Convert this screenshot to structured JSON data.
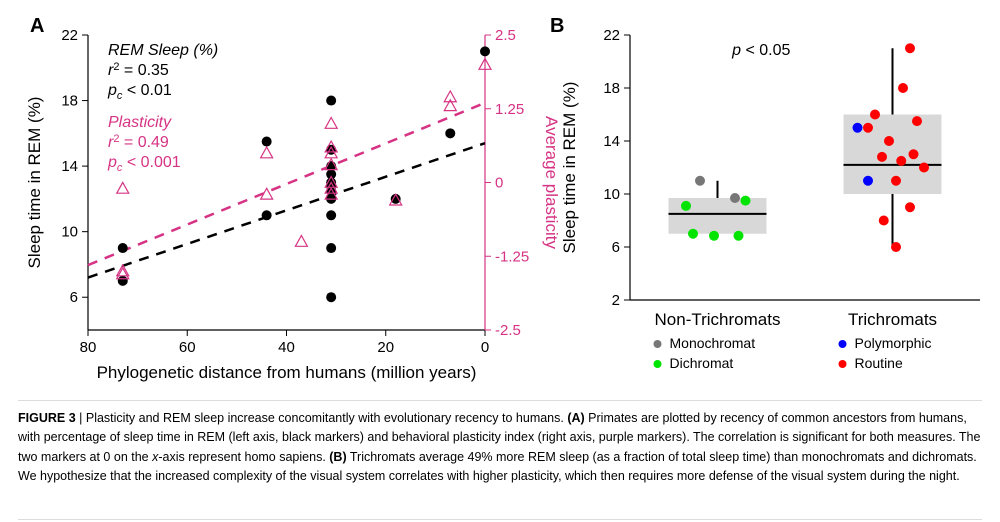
{
  "figure_number": "FIGURE 3",
  "caption_separator": " | ",
  "caption_intro": "Plasticity and REM sleep increase concomitantly with evolutionary recency to humans. ",
  "caption_A_label": "(A)",
  "caption_A": " Primates are plotted by recency of common ancestors from humans, with percentage of sleep time in REM (left axis, black markers) and behavioral plasticity index (right axis, purple markers). The correlation is significant for both measures. The two markers at 0 on the ",
  "caption_x_axis": "x",
  "caption_A2": "-axis represent homo sapiens. ",
  "caption_B_label": "(B)",
  "caption_B": " Trichromats average 49% more REM sleep (as a fraction of total sleep time) than monochromats and dichromats. We hypothesize that the increased complexity of the visual system correlates with higher plasticity, which then requires more defense of the visual system during the night.",
  "panelA": {
    "letter": "A",
    "x_title": "Phylogenetic distance from humans (million years)",
    "y_title": "Sleep time in REM (%)",
    "y2_title": "Average plasticity",
    "stats_rem_title": "REM Sleep (%)",
    "stats_rem_r2_label": "r",
    "stats_rem_r2_sup": "2",
    "stats_rem_r2_val": " = 0.35",
    "stats_rem_p_label": "p",
    "stats_rem_p_sub": "c",
    "stats_rem_p_val": " < 0.01",
    "stats_plast_title": "Plasticity",
    "stats_plast_r2_label": "r",
    "stats_plast_r2_sup": "2",
    "stats_plast_r2_val": " = 0.49",
    "stats_plast_p_label": "p",
    "stats_plast_p_sub": "c",
    "stats_plast_p_val": " < 0.001",
    "x_domain": [
      80,
      0
    ],
    "y_domain": [
      4,
      22
    ],
    "y2_domain": [
      -2.5,
      2.5
    ],
    "x_ticks": [
      80,
      60,
      40,
      20,
      0
    ],
    "y_ticks": [
      6,
      10,
      14,
      18,
      22
    ],
    "y2_ticks": [
      -2.5,
      -1.25,
      0,
      1.25,
      2.5
    ],
    "rem_marker_radius": 5,
    "rem_color": "#000000",
    "plast_color": "#d63384",
    "rem_line": {
      "x1": 80,
      "y1": 7.2,
      "x2": 0,
      "y2": 15.4,
      "dash": "10,8",
      "width": 2.5,
      "color": "#000000"
    },
    "plast_line": {
      "x1": 80,
      "y1_p": -1.4,
      "x2": 0,
      "y2_p": 1.35,
      "dash": "10,8",
      "width": 2.5,
      "color": "#d63384"
    },
    "rem_points": [
      {
        "x": 73,
        "y": 9.0
      },
      {
        "x": 73,
        "y": 7.0
      },
      {
        "x": 44,
        "y": 15.5
      },
      {
        "x": 44,
        "y": 11.0
      },
      {
        "x": 31,
        "y": 6.0
      },
      {
        "x": 31,
        "y": 9.0
      },
      {
        "x": 31,
        "y": 11.0
      },
      {
        "x": 31,
        "y": 12.0
      },
      {
        "x": 31,
        "y": 12.5
      },
      {
        "x": 31,
        "y": 12.8
      },
      {
        "x": 31,
        "y": 13.0
      },
      {
        "x": 31,
        "y": 13.5
      },
      {
        "x": 31,
        "y": 14.0
      },
      {
        "x": 31,
        "y": 15.0
      },
      {
        "x": 31,
        "y": 18.0
      },
      {
        "x": 18,
        "y": 12.0
      },
      {
        "x": 7,
        "y": 16.0
      },
      {
        "x": 0,
        "y": 21.0
      }
    ],
    "plast_points": [
      {
        "x": 73,
        "y": -0.1
      },
      {
        "x": 73,
        "y": -1.5
      },
      {
        "x": 73,
        "y": -1.55
      },
      {
        "x": 44,
        "y": 0.5
      },
      {
        "x": 44,
        "y": -0.2
      },
      {
        "x": 37,
        "y": -1.0
      },
      {
        "x": 31,
        "y": -0.1
      },
      {
        "x": 31,
        "y": -0.2
      },
      {
        "x": 31,
        "y": 0.0
      },
      {
        "x": 31,
        "y": 0.3
      },
      {
        "x": 31,
        "y": 0.5
      },
      {
        "x": 31,
        "y": 0.6
      },
      {
        "x": 31,
        "y": 1.0
      },
      {
        "x": 18,
        "y": -0.3
      },
      {
        "x": 7,
        "y": 1.3
      },
      {
        "x": 7,
        "y": 1.45
      },
      {
        "x": 0,
        "y": 2.0
      }
    ]
  },
  "panelB": {
    "letter": "B",
    "y_title": "Sleep time in REM (%)",
    "p_text": "p < 0.05",
    "y_domain": [
      2,
      22
    ],
    "y_ticks": [
      2,
      6,
      10,
      14,
      18,
      22
    ],
    "groups": {
      "non": {
        "label": "Non-Trichromats",
        "x": 1
      },
      "tri": {
        "label": "Trichromats",
        "x": 2
      }
    },
    "boxes": {
      "non": {
        "q1": 7.0,
        "median": 8.5,
        "q3": 9.7,
        "wlo": 6.8,
        "whi": 11.0
      },
      "tri": {
        "q1": 10.0,
        "median": 12.2,
        "q3": 16.0,
        "wlo": 6.0,
        "whi": 21.0
      }
    },
    "box_halfwidth": 0.28,
    "box_fill": "#d8d8d8",
    "jitter_radius": 5,
    "colors": {
      "monochromat": "#777777",
      "dichromat": "#00e400",
      "polymorphic": "#0000ff",
      "routine": "#ff0000"
    },
    "legend": {
      "monochromat": "Monochromat",
      "dichromat": "Dichromat",
      "polymorphic": "Polymorphic",
      "routine": "Routine"
    },
    "non_points": [
      {
        "jx": -0.1,
        "y": 11.0,
        "c": "monochromat"
      },
      {
        "jx": 0.1,
        "y": 9.7,
        "c": "monochromat"
      },
      {
        "jx": 0.16,
        "y": 9.5,
        "c": "dichromat"
      },
      {
        "jx": -0.18,
        "y": 9.1,
        "c": "dichromat"
      },
      {
        "jx": -0.14,
        "y": 7.0,
        "c": "dichromat"
      },
      {
        "jx": -0.02,
        "y": 6.85,
        "c": "dichromat"
      },
      {
        "jx": 0.12,
        "y": 6.85,
        "c": "dichromat"
      }
    ],
    "tri_points": [
      {
        "jx": 0.1,
        "y": 21.0,
        "c": "routine"
      },
      {
        "jx": 0.06,
        "y": 18.0,
        "c": "routine"
      },
      {
        "jx": -0.1,
        "y": 16.0,
        "c": "routine"
      },
      {
        "jx": 0.14,
        "y": 15.5,
        "c": "routine"
      },
      {
        "jx": -0.2,
        "y": 15.0,
        "c": "polymorphic"
      },
      {
        "jx": -0.14,
        "y": 15.0,
        "c": "routine"
      },
      {
        "jx": -0.02,
        "y": 14.0,
        "c": "routine"
      },
      {
        "jx": 0.12,
        "y": 13.0,
        "c": "routine"
      },
      {
        "jx": 0.05,
        "y": 12.5,
        "c": "routine"
      },
      {
        "jx": -0.06,
        "y": 12.8,
        "c": "routine"
      },
      {
        "jx": 0.18,
        "y": 12.0,
        "c": "routine"
      },
      {
        "jx": -0.14,
        "y": 11.0,
        "c": "polymorphic"
      },
      {
        "jx": 0.02,
        "y": 11.0,
        "c": "routine"
      },
      {
        "jx": 0.1,
        "y": 9.0,
        "c": "routine"
      },
      {
        "jx": -0.05,
        "y": 8.0,
        "c": "routine"
      },
      {
        "jx": 0.02,
        "y": 6.0,
        "c": "routine"
      }
    ]
  }
}
